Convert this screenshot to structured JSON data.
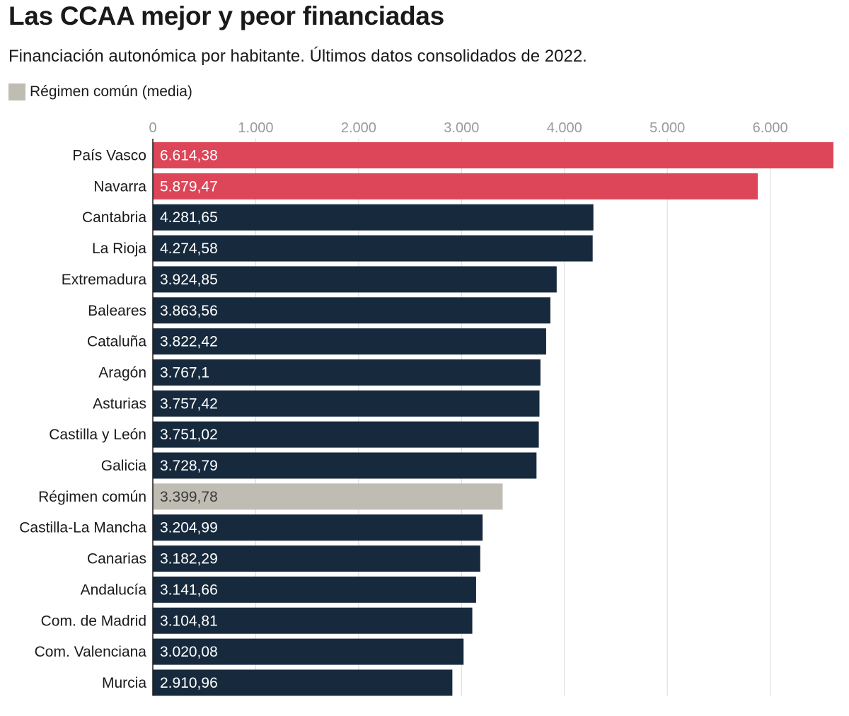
{
  "chart_data": {
    "type": "bar",
    "orientation": "horizontal",
    "title": "Las CCAA mejor y peor financiadas",
    "subtitle": "Financiación autonómica por habitante. Últimos datos consolidados de 2022.",
    "legend": [
      {
        "label": "Régimen común (media)",
        "color": "#bfbcb3"
      }
    ],
    "legend_position": "top-left",
    "axis_position": "top",
    "xlim": [
      0,
      6614.38
    ],
    "ticks": [
      {
        "value": 0,
        "label": "0"
      },
      {
        "value": 1000,
        "label": "1.000"
      },
      {
        "value": 2000,
        "label": "2.000"
      },
      {
        "value": 3000,
        "label": "3.000"
      },
      {
        "value": 4000,
        "label": "4.000"
      },
      {
        "value": 5000,
        "label": "5.000"
      },
      {
        "value": 6000,
        "label": "6.000"
      }
    ],
    "grid": true,
    "colors": {
      "highlight": "#dc4658",
      "default": "#172a3d",
      "average": "#bfbcb3",
      "grid": "#d9d9d9"
    },
    "bars": [
      {
        "category": "País Vasco",
        "value": 6614.38,
        "label": "6.614,38",
        "group": "highlight"
      },
      {
        "category": "Navarra",
        "value": 5879.47,
        "label": "5.879,47",
        "group": "highlight"
      },
      {
        "category": "Cantabria",
        "value": 4281.65,
        "label": "4.281,65",
        "group": "default"
      },
      {
        "category": "La Rioja",
        "value": 4274.58,
        "label": "4.274,58",
        "group": "default"
      },
      {
        "category": "Extremadura",
        "value": 3924.85,
        "label": "3.924,85",
        "group": "default"
      },
      {
        "category": "Baleares",
        "value": 3863.56,
        "label": "3.863,56",
        "group": "default"
      },
      {
        "category": "Cataluña",
        "value": 3822.42,
        "label": "3.822,42",
        "group": "default"
      },
      {
        "category": "Aragón",
        "value": 3767.1,
        "label": "3.767,1",
        "group": "default"
      },
      {
        "category": "Asturias",
        "value": 3757.42,
        "label": "3.757,42",
        "group": "default"
      },
      {
        "category": "Castilla y León",
        "value": 3751.02,
        "label": "3.751,02",
        "group": "default"
      },
      {
        "category": "Galicia",
        "value": 3728.79,
        "label": "3.728,79",
        "group": "default"
      },
      {
        "category": "Régimen común",
        "value": 3399.78,
        "label": "3.399,78",
        "group": "average"
      },
      {
        "category": "Castilla-La Mancha",
        "value": 3204.99,
        "label": "3.204,99",
        "group": "default"
      },
      {
        "category": "Canarias",
        "value": 3182.29,
        "label": "3.182,29",
        "group": "default"
      },
      {
        "category": "Andalucía",
        "value": 3141.66,
        "label": "3.141,66",
        "group": "default"
      },
      {
        "category": "Com. de Madrid",
        "value": 3104.81,
        "label": "3.104,81",
        "group": "default"
      },
      {
        "category": "Com. Valenciana",
        "value": 3020.08,
        "label": "3.020,08",
        "group": "default"
      },
      {
        "category": "Murcia",
        "value": 2910.96,
        "label": "2.910,96",
        "group": "default"
      }
    ]
  }
}
